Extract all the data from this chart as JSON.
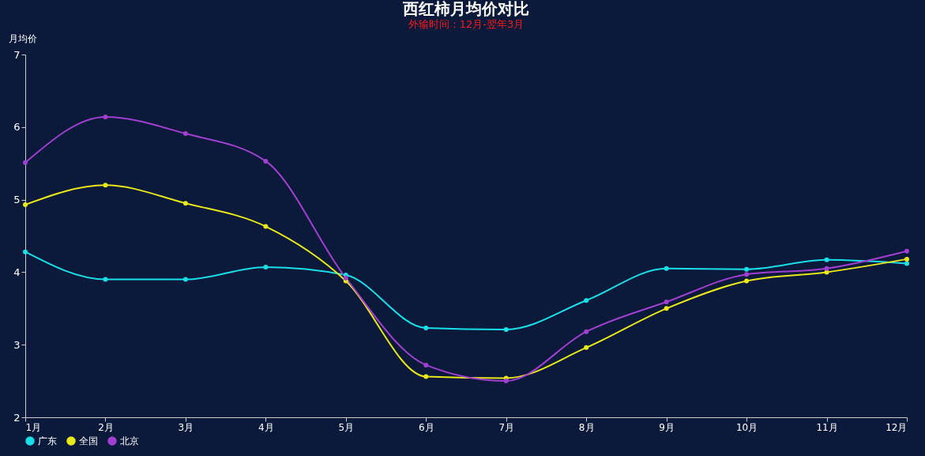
{
  "chart_data": {
    "type": "line",
    "title": "西红柿月均价对比",
    "subtitle": "外输时间：12月-翌年3月",
    "ylabel": "月均价",
    "categories": [
      "1月",
      "2月",
      "3月",
      "4月",
      "5月",
      "6月",
      "7月",
      "8月",
      "9月",
      "10月",
      "11月",
      "12月"
    ],
    "series": [
      {
        "name": "广东",
        "color": "#19dfe9",
        "values": [
          4.28,
          3.9,
          3.9,
          4.07,
          3.96,
          3.23,
          3.21,
          3.61,
          4.05,
          4.04,
          4.17,
          4.12
        ]
      },
      {
        "name": "全国",
        "color": "#e8e81a",
        "values": [
          4.93,
          5.2,
          4.95,
          4.63,
          3.88,
          2.56,
          2.54,
          2.96,
          3.5,
          3.88,
          4.0,
          4.18
        ]
      },
      {
        "name": "北京",
        "color": "#a03fd0",
        "values": [
          5.51,
          6.14,
          5.91,
          5.53,
          3.92,
          2.72,
          2.5,
          3.18,
          3.59,
          3.97,
          4.05,
          4.29
        ]
      }
    ],
    "ylim": [
      2,
      7
    ],
    "yticks": [
      2,
      3,
      4,
      5,
      6,
      7
    ],
    "grid": false,
    "legend": "bottom",
    "marker": "circle",
    "line_style": "solid"
  }
}
